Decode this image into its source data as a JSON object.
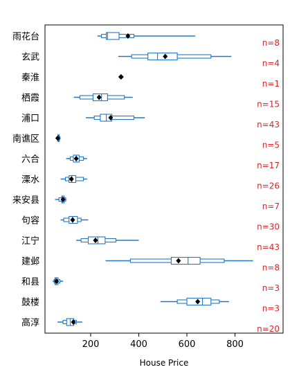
{
  "chart_data": {
    "type": "boxplot",
    "xlabel": "House Price",
    "xlim": [
      10,
      1000
    ],
    "xticks": [
      200,
      400,
      600,
      800
    ],
    "colors": {
      "box": "#1f78c8",
      "median_dot": "#000000",
      "n_label": "#d62728",
      "frame": "#000000"
    },
    "categories": [
      {
        "name": "雨花台",
        "n_text": "n=8",
        "min": 228,
        "q1": 245,
        "h1": 265,
        "median": 270,
        "h2": 318,
        "q3": 380,
        "max": 635,
        "mean": 355
      },
      {
        "name": "玄武",
        "n_text": "n=4",
        "min": 315,
        "q1": 370,
        "h1": 438,
        "median": 478,
        "h2": 560,
        "q3": 700,
        "max": 785,
        "mean": 510
      },
      {
        "name": "秦淮",
        "n_text": "n=1",
        "min": 326,
        "q1": 326,
        "h1": 326,
        "median": 326,
        "h2": 326,
        "q3": 326,
        "max": 326,
        "mean": 326
      },
      {
        "name": "栖霞",
        "n_text": "n=15",
        "min": 130,
        "q1": 155,
        "h1": 210,
        "median": 245,
        "h2": 270,
        "q3": 340,
        "max": 375,
        "mean": 235
      },
      {
        "name": "浦口",
        "n_text": "n=43",
        "min": 180,
        "q1": 215,
        "h1": 240,
        "median": 265,
        "h2": 288,
        "q3": 380,
        "max": 425,
        "mean": 283
      },
      {
        "name": "南谯区",
        "n_text": "n=5",
        "min": 60,
        "q1": 62,
        "h1": 64,
        "median": 66,
        "h2": 69,
        "q3": 72,
        "max": 75,
        "mean": 63
      },
      {
        "name": "六合",
        "n_text": "n=17",
        "min": 98,
        "q1": 115,
        "h1": 128,
        "median": 140,
        "h2": 152,
        "q3": 170,
        "max": 185,
        "mean": 140
      },
      {
        "name": "溧水",
        "n_text": "n=26",
        "min": 75,
        "q1": 95,
        "h1": 110,
        "median": 122,
        "h2": 138,
        "q3": 170,
        "max": 185,
        "mean": 120
      },
      {
        "name": "来安县",
        "n_text": "n=7",
        "min": 52,
        "q1": 68,
        "h1": 80,
        "median": 82,
        "h2": 90,
        "q3": 96,
        "max": 100,
        "mean": 85
      },
      {
        "name": "句容",
        "n_text": "n=30",
        "min": 75,
        "q1": 88,
        "h1": 110,
        "median": 125,
        "h2": 145,
        "q3": 160,
        "max": 190,
        "mean": 125
      },
      {
        "name": "江宁",
        "n_text": "n=43",
        "min": 140,
        "q1": 160,
        "h1": 190,
        "median": 230,
        "h2": 260,
        "q3": 305,
        "max": 400,
        "mean": 220
      },
      {
        "name": "建邺",
        "n_text": "n=8",
        "min": 262,
        "q1": 365,
        "h1": 535,
        "median": 605,
        "h2": 655,
        "q3": 755,
        "max": 875,
        "mean": 565
      },
      {
        "name": "和县",
        "n_text": "n=3",
        "min": 42,
        "q1": 48,
        "h1": 52,
        "median": 56,
        "h2": 64,
        "q3": 72,
        "max": 85,
        "mean": 58
      },
      {
        "name": "鼓楼",
        "n_text": "n=3",
        "min": 490,
        "q1": 560,
        "h1": 600,
        "median": 665,
        "h2": 700,
        "q3": 735,
        "max": 775,
        "mean": 645
      },
      {
        "name": "高淳",
        "n_text": "n=20",
        "min": 62,
        "q1": 85,
        "h1": 100,
        "median": 115,
        "h2": 130,
        "q3": 140,
        "max": 165,
        "mean": 128
      }
    ]
  }
}
